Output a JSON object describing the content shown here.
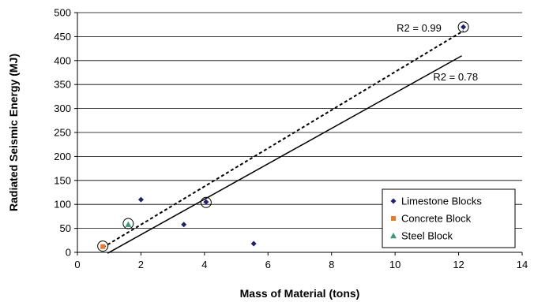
{
  "chart_data": {
    "type": "scatter",
    "title": "",
    "xlabel": "Mass of Material (tons)",
    "ylabel": "Radiated Seismic Energy (MJ)",
    "xlim": [
      0,
      14
    ],
    "ylim": [
      0,
      500
    ],
    "xticks": [
      0,
      2,
      4,
      6,
      8,
      10,
      12,
      14
    ],
    "yticks": [
      0,
      50,
      100,
      150,
      200,
      250,
      300,
      350,
      400,
      450,
      500
    ],
    "grid": "horizontal",
    "legend_position": "bottom-right",
    "series": [
      {
        "name": "Limestone Blocks",
        "marker": "diamond",
        "color": "#1f1f7a",
        "points": [
          [
            2.0,
            110
          ],
          [
            3.35,
            58
          ],
          [
            4.05,
            105
          ],
          [
            5.55,
            18
          ],
          [
            12.15,
            470
          ]
        ]
      },
      {
        "name": "Concrete Block",
        "marker": "square",
        "color": "#f07820",
        "points": [
          [
            0.8,
            12
          ]
        ]
      },
      {
        "name": "Steel Block",
        "marker": "triangle",
        "color": "#3a9a78",
        "points": [
          [
            1.6,
            58
          ]
        ]
      }
    ],
    "circled_points": [
      [
        0.8,
        13
      ],
      [
        1.6,
        60
      ],
      [
        4.05,
        104
      ],
      [
        12.15,
        470
      ]
    ],
    "trendlines": [
      {
        "style": "dotted",
        "label": "R2 = 0.99",
        "from": [
          0.8,
          10
        ],
        "to": [
          12.15,
          462
        ]
      },
      {
        "style": "solid",
        "label": "R2 = 0.78",
        "from": [
          0.95,
          -2
        ],
        "to": [
          12.1,
          410
        ]
      }
    ],
    "annotations": [
      {
        "text": "R2 = 0.99",
        "x": 10.05,
        "y": 468
      },
      {
        "text": "R2 = 0.78",
        "x": 11.2,
        "y": 366
      }
    ]
  }
}
